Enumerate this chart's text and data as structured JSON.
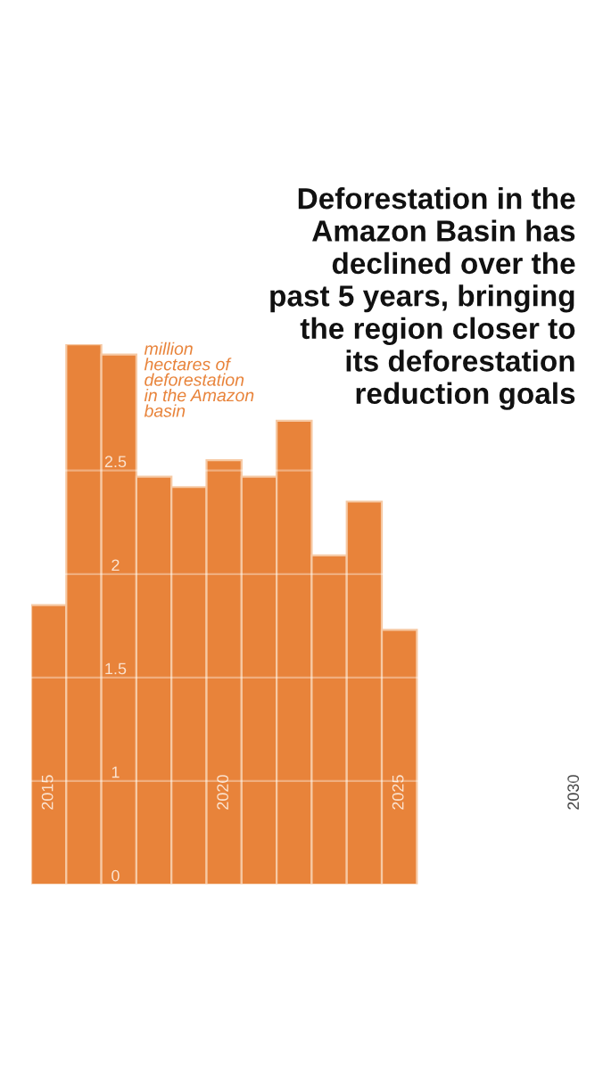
{
  "chart_data": {
    "type": "bar",
    "title": "Deforestation in the\nAmazon Basin has\ndeclined over the\npast 5 years, bringing\nthe region closer to\nits deforestation\nreduction goals",
    "ylabel": "million\nhectares of\ndeforestation\nin the Amazon\nbasin",
    "x": [
      2015,
      2016,
      2017,
      2018,
      2019,
      2020,
      2021,
      2022,
      2023,
      2024,
      2025
    ],
    "values": [
      1.85,
      3.11,
      3.06,
      2.47,
      2.42,
      2.55,
      2.47,
      2.74,
      2.09,
      2.35,
      1.73
    ],
    "color": "#e8833a",
    "xlim": [
      2014.5,
      2030.5
    ],
    "xticks": [
      2015,
      2020,
      2025,
      2030
    ],
    "ylim": [
      0.5,
      3.11
    ],
    "yticks": [
      {
        "value": 0.5,
        "label": "0"
      },
      1,
      1.5,
      2,
      2.5
    ],
    "grid": "y"
  }
}
